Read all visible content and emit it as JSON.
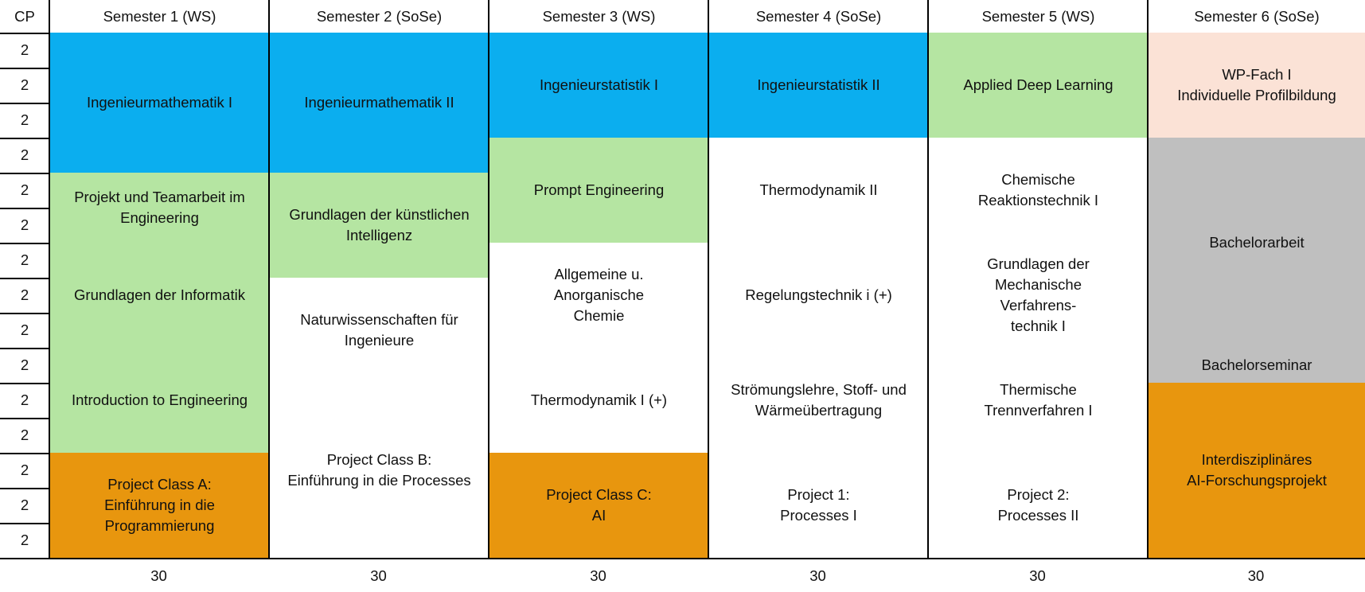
{
  "colors": {
    "blue": "#0BAEEF",
    "green": "#B5E5A2",
    "orange": "#E8960E",
    "peach": "#FBE2D6",
    "gray": "#BFBFBF",
    "white": "#FFFFFF"
  },
  "header": {
    "cp_label": "CP",
    "semesters": [
      "Semester 1 (WS)",
      "Semester 2 (SoSe)",
      "Semester 3 (WS)",
      "Semester 4 (SoSe)",
      "Semester 5 (WS)",
      "Semester 6 (SoSe)"
    ]
  },
  "cp_rows": [
    "2",
    "2",
    "2",
    "2",
    "2",
    "2",
    "2",
    "2",
    "2",
    "2",
    "2",
    "2",
    "2",
    "2",
    "2"
  ],
  "totals": [
    "30",
    "30",
    "30",
    "30",
    "30",
    "30"
  ],
  "semesters": [
    {
      "modules": [
        {
          "name": "Ingenieurmathematik I",
          "start": 1,
          "span": 4,
          "color": "blue"
        },
        {
          "name": "Projekt und Teamarbeit im\nEngineering",
          "start": 5,
          "span": 2,
          "color": "green"
        },
        {
          "name": "Grundlagen der Informatik",
          "start": 7,
          "span": 3,
          "color": "green"
        },
        {
          "name": "Introduction to Engineering",
          "start": 10,
          "span": 3,
          "color": "green"
        },
        {
          "name": "Project Class A:\nEinführung in die\nProgrammierung",
          "start": 13,
          "span": 3,
          "color": "orange"
        }
      ]
    },
    {
      "modules": [
        {
          "name": "Ingenieurmathematik II",
          "start": 1,
          "span": 4,
          "color": "blue"
        },
        {
          "name": "Grundlagen der künstlichen\nIntelligenz",
          "start": 5,
          "span": 3,
          "color": "green"
        },
        {
          "name": "Naturwissenschaften für\nIngenieure",
          "start": 8,
          "span": 3,
          "color": "white"
        },
        {
          "name": "Project Class B:\nEinführung in die Processes",
          "start": 11,
          "span": 5,
          "color": "white"
        }
      ]
    },
    {
      "modules": [
        {
          "name": "Ingenieurstatistik I",
          "start": 1,
          "span": 3,
          "color": "blue"
        },
        {
          "name": "Prompt Engineering",
          "start": 4,
          "span": 3,
          "color": "green"
        },
        {
          "name": "Allgemeine u.\nAnorganische\nChemie",
          "start": 7,
          "span": 3,
          "color": "white"
        },
        {
          "name": "Thermodynamik I (+)",
          "start": 10,
          "span": 3,
          "color": "white"
        },
        {
          "name": "Project Class C:\nAI",
          "start": 13,
          "span": 3,
          "color": "orange"
        }
      ]
    },
    {
      "modules": [
        {
          "name": "Ingenieurstatistik II",
          "start": 1,
          "span": 3,
          "color": "blue"
        },
        {
          "name": "Thermodynamik II",
          "start": 4,
          "span": 3,
          "color": "white"
        },
        {
          "name": "Regelungstechnik i (+)",
          "start": 7,
          "span": 3,
          "color": "white"
        },
        {
          "name": "Strömungslehre, Stoff- und\nWärmeübertragung",
          "start": 10,
          "span": 3,
          "color": "white"
        },
        {
          "name": "Project 1:\nProcesses I",
          "start": 13,
          "span": 3,
          "color": "white"
        }
      ]
    },
    {
      "modules": [
        {
          "name": "Applied Deep Learning",
          "start": 1,
          "span": 3,
          "color": "green"
        },
        {
          "name": "Chemische\nReaktionstechnik I",
          "start": 4,
          "span": 3,
          "color": "white"
        },
        {
          "name": "Grundlagen der\nMechanische\nVerfahrens-\ntechnik I",
          "start": 7,
          "span": 3,
          "color": "white"
        },
        {
          "name": "Thermische\nTrennverfahren I",
          "start": 10,
          "span": 3,
          "color": "white"
        },
        {
          "name": "Project 2:\nProcesses II",
          "start": 13,
          "span": 3,
          "color": "white"
        }
      ]
    },
    {
      "modules": [
        {
          "name": "WP-Fach I\nIndividuelle Profilbildung",
          "start": 1,
          "span": 3,
          "color": "peach"
        },
        {
          "name": "Bachelorarbeit",
          "start": 4,
          "span": 6,
          "color": "gray"
        },
        {
          "name": "Bachelorseminar",
          "start": 10,
          "span": 1,
          "color": "gray"
        },
        {
          "name": "Interdisziplinäres\nAI-Forschungsprojekt",
          "start": 11,
          "span": 5,
          "color": "orange"
        }
      ]
    }
  ]
}
